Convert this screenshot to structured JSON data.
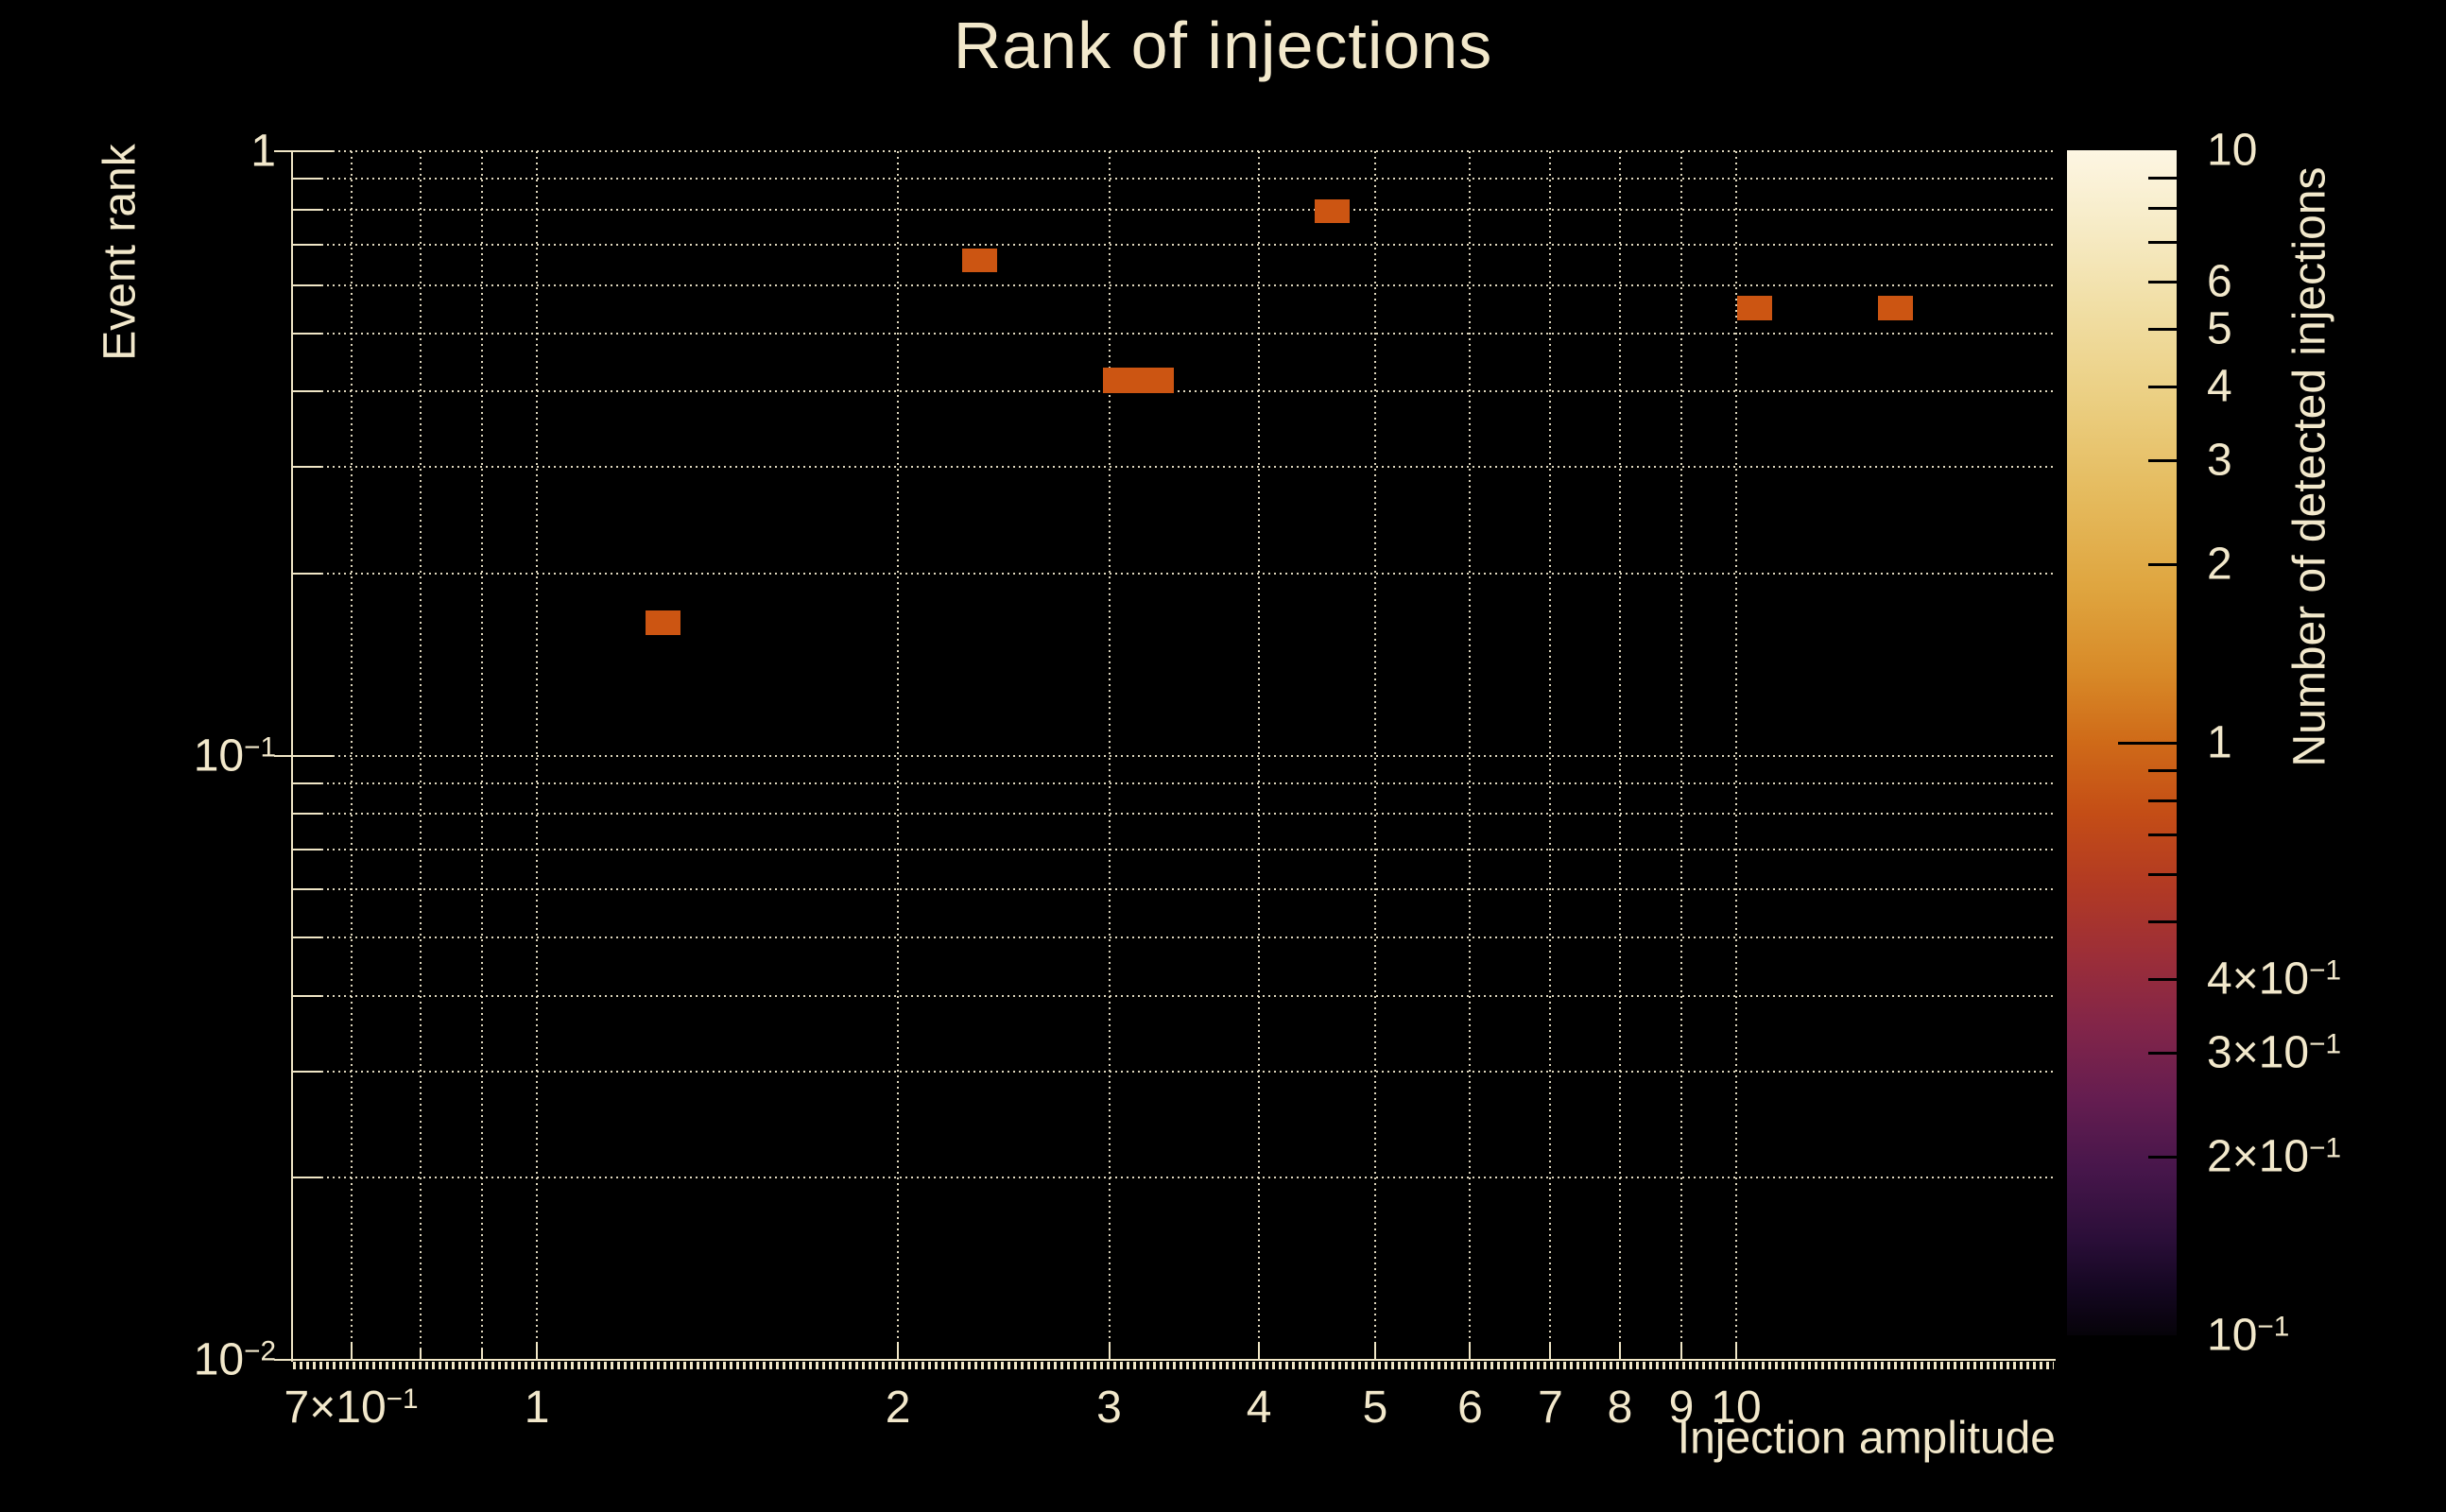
{
  "colors": {
    "background": "#000000",
    "text": "#f2e8cb",
    "grid": "#f0e6c6",
    "axis": "#f0e6c6",
    "cell": "#cc5512",
    "colorbar_tick": "#000000"
  },
  "chart_data": {
    "type": "heatmap",
    "title": "Rank of injections",
    "xlabel": "Injection amplitude",
    "ylabel": "Event rank",
    "zlabel": "Number of detected injections",
    "xscale": "log",
    "yscale": "log",
    "zscale": "log",
    "xlim": [
      0.626,
      18.4
    ],
    "ylim": [
      0.01,
      1.0
    ],
    "zlim": [
      0.1,
      10.0
    ],
    "grid": "dotted",
    "x_ticks": [
      {
        "value": 0.7,
        "label": "7×10⁻¹",
        "major": true
      },
      {
        "value": 0.8,
        "major": false
      },
      {
        "value": 0.9,
        "major": false
      },
      {
        "value": 1,
        "label": "1",
        "major": true
      },
      {
        "value": 2,
        "label": "2",
        "major": true
      },
      {
        "value": 3,
        "label": "3",
        "major": true
      },
      {
        "value": 4,
        "label": "4",
        "major": true
      },
      {
        "value": 5,
        "label": "5",
        "major": true
      },
      {
        "value": 6,
        "label": "6",
        "major": true
      },
      {
        "value": 7,
        "label": "7",
        "major": true
      },
      {
        "value": 8,
        "label": "8",
        "major": true
      },
      {
        "value": 9,
        "label": "9",
        "major": true
      },
      {
        "value": 10,
        "label": "10",
        "major": true
      }
    ],
    "y_ticks": [
      {
        "value": 1,
        "label": "1",
        "major": true
      },
      {
        "value": 0.9
      },
      {
        "value": 0.8
      },
      {
        "value": 0.7
      },
      {
        "value": 0.6
      },
      {
        "value": 0.5
      },
      {
        "value": 0.4
      },
      {
        "value": 0.3
      },
      {
        "value": 0.2
      },
      {
        "value": 0.1,
        "label": "10⁻¹",
        "major": true
      },
      {
        "value": 0.09
      },
      {
        "value": 0.08
      },
      {
        "value": 0.07
      },
      {
        "value": 0.06
      },
      {
        "value": 0.05
      },
      {
        "value": 0.04
      },
      {
        "value": 0.03
      },
      {
        "value": 0.02
      },
      {
        "value": 0.01,
        "label": "10⁻²",
        "major": true
      }
    ],
    "z_ticks": [
      {
        "value": 10,
        "label": "10",
        "ticklen": 0
      },
      {
        "value": 9,
        "ticklen": 30
      },
      {
        "value": 8,
        "ticklen": 30
      },
      {
        "value": 7,
        "ticklen": 30
      },
      {
        "value": 6,
        "label": "6",
        "ticklen": 30
      },
      {
        "value": 5,
        "label": "5",
        "ticklen": 30
      },
      {
        "value": 4,
        "label": "4",
        "ticklen": 30
      },
      {
        "value": 3,
        "label": "3",
        "ticklen": 30
      },
      {
        "value": 2,
        "label": "2",
        "ticklen": 30
      },
      {
        "value": 1,
        "label": "1",
        "ticklen": 62
      },
      {
        "value": 0.9,
        "ticklen": 30
      },
      {
        "value": 0.8,
        "ticklen": 30
      },
      {
        "value": 0.7,
        "ticklen": 30
      },
      {
        "value": 0.6,
        "ticklen": 30
      },
      {
        "value": 0.5,
        "ticklen": 30
      },
      {
        "value": 0.4,
        "label": "4×10⁻¹",
        "ticklen": 30
      },
      {
        "value": 0.3,
        "label": "3×10⁻¹",
        "ticklen": 30
      },
      {
        "value": 0.2,
        "label": "2×10⁻¹",
        "ticklen": 30
      },
      {
        "value": 0.1,
        "label": "10⁻¹",
        "ticklen": 0
      }
    ],
    "cells": [
      {
        "amp": [
          1.232,
          1.318
        ],
        "rank": [
          0.158,
          0.174
        ],
        "count": 1
      },
      {
        "amp": [
          2.263,
          2.42
        ],
        "rank": [
          0.631,
          0.69
        ],
        "count": 1
      },
      {
        "amp": [
          2.965,
          3.397
        ],
        "rank": [
          0.398,
          0.438
        ],
        "count": 1
      },
      {
        "amp": [
          4.452,
          4.761
        ],
        "rank": [
          0.761,
          0.832
        ],
        "count": 1
      },
      {
        "amp": [
          10.02,
          10.72
        ],
        "rank": [
          0.525,
          0.576
        ],
        "count": 1
      },
      {
        "amp": [
          13.13,
          14.04
        ],
        "rank": [
          0.525,
          0.576
        ],
        "count": 1
      }
    ],
    "palette_bottom_to_top": [
      {
        "color": "#060309",
        "pos": 0
      },
      {
        "color": "#150722",
        "pos": 4
      },
      {
        "color": "#2a0e38",
        "pos": 8
      },
      {
        "color": "#47164b",
        "pos": 14
      },
      {
        "color": "#651d50",
        "pos": 20
      },
      {
        "color": "#822549",
        "pos": 26
      },
      {
        "color": "#9c2e38",
        "pos": 32
      },
      {
        "color": "#b23a23",
        "pos": 38
      },
      {
        "color": "#c44d16",
        "pos": 44
      },
      {
        "color": "#cf6a18",
        "pos": 50
      },
      {
        "color": "#d88a28",
        "pos": 56
      },
      {
        "color": "#dfa53f",
        "pos": 63
      },
      {
        "color": "#e5bb5e",
        "pos": 71
      },
      {
        "color": "#ebcf82",
        "pos": 79
      },
      {
        "color": "#f1dfa6",
        "pos": 87
      },
      {
        "color": "#f7ecc8",
        "pos": 94
      },
      {
        "color": "#fdf6e3",
        "pos": 100
      }
    ]
  }
}
